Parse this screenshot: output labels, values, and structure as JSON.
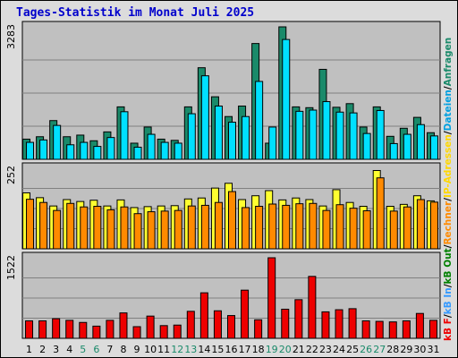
{
  "chart_data": {
    "type": "bar",
    "title": "Tages-Statistik im Monat Juli 2025",
    "x": [
      "1",
      "2",
      "3",
      "4",
      "5",
      "6",
      "7",
      "8",
      "9",
      "10",
      "11",
      "12",
      "13",
      "14",
      "15",
      "16",
      "17",
      "18",
      "19",
      "20",
      "21",
      "22",
      "23",
      "24",
      "25",
      "26",
      "27",
      "28",
      "29",
      "30",
      "31"
    ],
    "weekend_days": [
      "5",
      "6",
      "12",
      "13",
      "19",
      "20",
      "26",
      "27"
    ],
    "panels": [
      {
        "id": "top",
        "ymax_label": "3283",
        "ymax": 3283,
        "series": [
          {
            "name": "Anfragen",
            "color": "#1a8a6a",
            "values": [
              500,
              560,
              960,
              560,
              600,
              460,
              680,
              1300,
              400,
              800,
              500,
              470,
              1300,
              2270,
              1550,
              1060,
              1320,
              2870,
              400,
              3283,
              1300,
              1280,
              2230,
              1290,
              1380,
              800,
              1300,
              570,
              770,
              1040,
              660
            ]
          },
          {
            "name": "Dateien",
            "color": "#00e0ff",
            "values": [
              420,
              480,
              840,
              360,
              420,
              320,
              540,
              1180,
              300,
              620,
              420,
              400,
              1130,
              2070,
              1320,
              920,
              1060,
              1930,
              800,
              2970,
              1190,
              1220,
              1430,
              1170,
              1150,
              640,
              1210,
              390,
              620,
              860,
              580
            ]
          }
        ]
      },
      {
        "id": "middle",
        "ymax_label": "252",
        "ymax": 252,
        "series": [
          {
            "name": "Rechner",
            "color": "#ffff30",
            "values": [
              175,
              160,
              134,
              154,
              148,
              152,
              134,
              153,
              129,
              132,
              134,
              135,
              156,
              159,
              190,
              205,
              154,
              166,
              182,
              153,
              159,
              154,
              134,
              185,
              145,
              133,
              245,
              133,
              139,
              166,
              150
            ]
          },
          {
            "name": "IP-Adressen",
            "color": "#ff8a00",
            "values": [
              155,
              145,
              120,
              142,
              131,
              133,
              122,
              131,
              110,
              116,
              118,
              120,
              134,
              136,
              145,
              179,
              129,
              133,
              140,
              136,
              141,
              142,
              120,
              138,
              127,
              119,
              222,
              118,
              131,
              154,
              146
            ]
          }
        ]
      },
      {
        "id": "bottom",
        "ymax_label": "1522",
        "ymax": 1522,
        "series": [
          {
            "name": "kB F",
            "color": "#ee0000",
            "values": [
              330,
              330,
              370,
              340,
              300,
              230,
              340,
              480,
              220,
              420,
              240,
              250,
              510,
              860,
              520,
              430,
              910,
              350,
              1522,
              550,
              730,
              1170,
              500,
              540,
              560,
              330,
              320,
              310,
              330,
              470,
              340
            ]
          }
        ]
      }
    ],
    "legend": [
      {
        "label": "kB F",
        "color": "#ee0000"
      },
      {
        "label": "/",
        "color": "#000000"
      },
      {
        "label": "kB In",
        "color": "#3399ff"
      },
      {
        "label": "/",
        "color": "#000000"
      },
      {
        "label": "kB Out",
        "color": "#008000"
      },
      {
        "label": "/",
        "color": "#000000"
      },
      {
        "label": "Rechner",
        "color": "#ff8a00"
      },
      {
        "label": "/",
        "color": "#000000"
      },
      {
        "label": "IP-Adressen",
        "color": "#ffd700"
      },
      {
        "label": "/",
        "color": "#000000"
      },
      {
        "label": "Dateien",
        "color": "#00a0e0"
      },
      {
        "label": "/",
        "color": "#000000"
      },
      {
        "label": "Anfragen",
        "color": "#1a8a6a"
      }
    ],
    "colors": {
      "plot_bg": "#c0c0c0",
      "grid": "#808080",
      "weekday_label": "#000000",
      "weekend_label": "#1a8a6a"
    }
  }
}
